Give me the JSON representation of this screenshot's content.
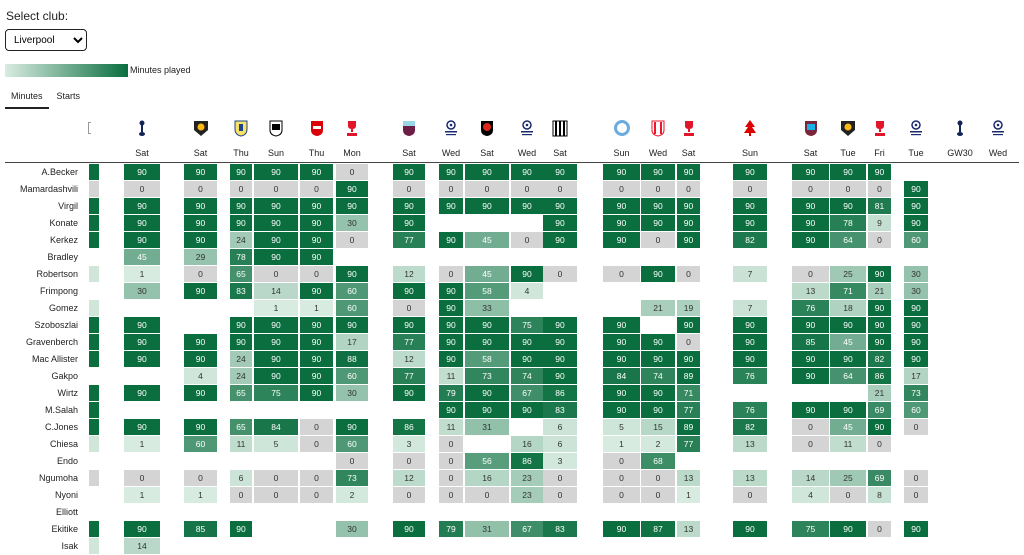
{
  "controls": {
    "select_label": "Select club:",
    "club": "Liverpool",
    "legend_label": "Minutes played",
    "tabs": [
      "Minutes",
      "Starts"
    ],
    "active_tab": 0
  },
  "colors": {
    "low": "#d9ece2",
    "high": "#0a6e3f",
    "zero": "#d4d4d4"
  },
  "columns": [
    {
      "icon": "tottenham-crest-icon",
      "day": "Sat"
    },
    {
      "icon": "wolves-crest-icon",
      "day": "Sat"
    },
    {
      "icon": "leeds-crest-icon",
      "day": "Thu"
    },
    {
      "icon": "fulham-crest-icon",
      "day": "Sun"
    },
    {
      "icon": "arsenal-crest-icon",
      "day": "Thu"
    },
    {
      "icon": "fa-cup-logo-icon",
      "day": "Mon"
    },
    {
      "icon": "burnley-crest-icon",
      "day": "Sat"
    },
    {
      "icon": "champions-league-logo-icon",
      "day": "Wed"
    },
    {
      "icon": "bournemouth-crest-icon",
      "day": "Sat"
    },
    {
      "icon": "champions-league-logo-icon",
      "day": "Wed"
    },
    {
      "icon": "newcastle-crest-icon",
      "day": "Sat"
    },
    {
      "icon": "man-city-crest-icon",
      "day": "Sun"
    },
    {
      "icon": "sunderland-crest-icon",
      "day": "Wed"
    },
    {
      "icon": "fa-cup-logo-icon",
      "day": "Sat"
    },
    {
      "icon": "forest-crest-icon",
      "day": "Sun"
    },
    {
      "icon": "west-ham-crest-icon",
      "day": "Sat"
    },
    {
      "icon": "wolves-crest-icon",
      "day": "Tue"
    },
    {
      "icon": "fa-cup-logo-icon",
      "day": "Fri"
    },
    {
      "icon": "champions-league-logo-icon",
      "day": "Tue"
    },
    {
      "icon": "tottenham-crest-icon",
      "day": "GW30"
    },
    {
      "icon": "champions-league-logo-icon",
      "day": "Wed"
    }
  ],
  "players": [
    {
      "name": "A.Becker",
      "season": "high",
      "m": [
        90,
        90,
        90,
        90,
        90,
        0,
        90,
        90,
        90,
        90,
        90,
        90,
        90,
        90,
        90,
        90,
        90,
        90,
        null,
        null,
        null
      ]
    },
    {
      "name": "Mamardashvili",
      "season": "zero",
      "m": [
        0,
        0,
        0,
        0,
        0,
        90,
        0,
        0,
        0,
        0,
        0,
        0,
        0,
        0,
        0,
        0,
        0,
        0,
        90,
        null,
        null
      ]
    },
    {
      "name": "Virgil",
      "season": "high",
      "m": [
        90,
        90,
        90,
        90,
        90,
        90,
        90,
        90,
        90,
        90,
        90,
        90,
        90,
        90,
        90,
        90,
        90,
        81,
        90,
        null,
        null
      ]
    },
    {
      "name": "Konate",
      "season": "high",
      "m": [
        90,
        90,
        90,
        90,
        90,
        30,
        90,
        null,
        null,
        null,
        90,
        90,
        90,
        90,
        90,
        90,
        78,
        9,
        90,
        null,
        null
      ]
    },
    {
      "name": "Kerkez",
      "season": "high",
      "m": [
        90,
        90,
        24,
        90,
        90,
        0,
        77,
        90,
        45,
        0,
        90,
        90,
        0,
        90,
        82,
        90,
        64,
        0,
        60,
        null,
        null
      ]
    },
    {
      "name": "Bradley",
      "season": "none",
      "m": [
        45,
        29,
        78,
        90,
        90,
        null,
        null,
        null,
        null,
        null,
        null,
        null,
        null,
        null,
        null,
        null,
        null,
        null,
        null,
        null,
        null
      ]
    },
    {
      "name": "Robertson",
      "season": "low",
      "m": [
        1,
        0,
        65,
        0,
        0,
        90,
        12,
        0,
        45,
        90,
        0,
        0,
        90,
        0,
        7,
        0,
        25,
        90,
        30,
        null,
        null
      ]
    },
    {
      "name": "Frimpong",
      "season": "none",
      "m": [
        30,
        90,
        83,
        14,
        90,
        60,
        90,
        90,
        58,
        4,
        null,
        null,
        null,
        null,
        null,
        13,
        71,
        21,
        30,
        null,
        null
      ]
    },
    {
      "name": "Gomez",
      "season": "low",
      "m": [
        null,
        null,
        null,
        1,
        1,
        60,
        0,
        90,
        33,
        null,
        null,
        null,
        21,
        19,
        7,
        76,
        18,
        90,
        90,
        null,
        null
      ]
    },
    {
      "name": "Szoboszlai",
      "season": "high",
      "m": [
        90,
        null,
        90,
        90,
        90,
        90,
        90,
        90,
        90,
        75,
        90,
        90,
        null,
        90,
        90,
        90,
        90,
        90,
        90,
        null,
        null
      ]
    },
    {
      "name": "Gravenberch",
      "season": "high",
      "m": [
        90,
        90,
        90,
        90,
        90,
        17,
        77,
        90,
        90,
        90,
        90,
        90,
        90,
        0,
        90,
        85,
        45,
        90,
        90,
        null,
        null
      ]
    },
    {
      "name": "Mac Allister",
      "season": "high",
      "m": [
        90,
        90,
        24,
        90,
        90,
        88,
        12,
        90,
        58,
        90,
        90,
        90,
        90,
        90,
        90,
        90,
        90,
        82,
        90,
        null,
        null
      ]
    },
    {
      "name": "Gakpo",
      "season": "none",
      "m": [
        null,
        4,
        24,
        90,
        90,
        60,
        77,
        11,
        73,
        74,
        90,
        84,
        74,
        89,
        76,
        90,
        64,
        86,
        17,
        null,
        null
      ]
    },
    {
      "name": "Wirtz",
      "season": "high",
      "m": [
        90,
        90,
        65,
        75,
        90,
        30,
        90,
        79,
        90,
        67,
        86,
        90,
        90,
        71,
        null,
        null,
        null,
        21,
        73,
        null,
        null
      ]
    },
    {
      "name": "M.Salah",
      "season": "high",
      "m": [
        null,
        null,
        null,
        null,
        null,
        null,
        null,
        90,
        90,
        90,
        83,
        90,
        90,
        77,
        76,
        90,
        90,
        69,
        60,
        null,
        null
      ]
    },
    {
      "name": "C.Jones",
      "season": "high",
      "m": [
        90,
        90,
        65,
        84,
        0,
        90,
        86,
        11,
        31,
        null,
        6,
        5,
        15,
        89,
        82,
        0,
        45,
        90,
        0,
        null,
        null
      ]
    },
    {
      "name": "Chiesa",
      "season": "low",
      "m": [
        1,
        60,
        11,
        5,
        0,
        60,
        3,
        0,
        null,
        16,
        6,
        1,
        2,
        77,
        13,
        0,
        11,
        0,
        null,
        null,
        null
      ]
    },
    {
      "name": "Endo",
      "season": "none",
      "m": [
        null,
        null,
        null,
        null,
        null,
        0,
        0,
        0,
        56,
        86,
        3,
        0,
        68,
        null,
        null,
        null,
        null,
        null,
        null,
        null,
        null
      ]
    },
    {
      "name": "Ngumoha",
      "season": "zero",
      "m": [
        0,
        0,
        6,
        0,
        0,
        73,
        12,
        0,
        16,
        23,
        0,
        0,
        0,
        13,
        13,
        14,
        25,
        69,
        0,
        null,
        null
      ]
    },
    {
      "name": "Nyoni",
      "season": "none",
      "m": [
        1,
        1,
        0,
        0,
        0,
        2,
        0,
        0,
        0,
        23,
        0,
        0,
        0,
        1,
        0,
        4,
        0,
        8,
        0,
        null,
        null
      ]
    },
    {
      "name": "Elliott",
      "season": "none",
      "m": [
        null,
        null,
        null,
        null,
        null,
        null,
        null,
        null,
        null,
        null,
        null,
        null,
        null,
        null,
        null,
        null,
        null,
        null,
        null,
        null,
        null
      ]
    },
    {
      "name": "Ekitike",
      "season": "high",
      "m": [
        90,
        85,
        90,
        null,
        null,
        30,
        90,
        79,
        31,
        67,
        83,
        90,
        87,
        13,
        90,
        75,
        90,
        0,
        90,
        null,
        null
      ]
    },
    {
      "name": "Isak",
      "season": "low",
      "m": [
        14,
        null,
        null,
        null,
        null,
        null,
        null,
        null,
        null,
        null,
        null,
        null,
        null,
        null,
        null,
        null,
        null,
        null,
        null,
        null,
        null
      ]
    }
  ]
}
